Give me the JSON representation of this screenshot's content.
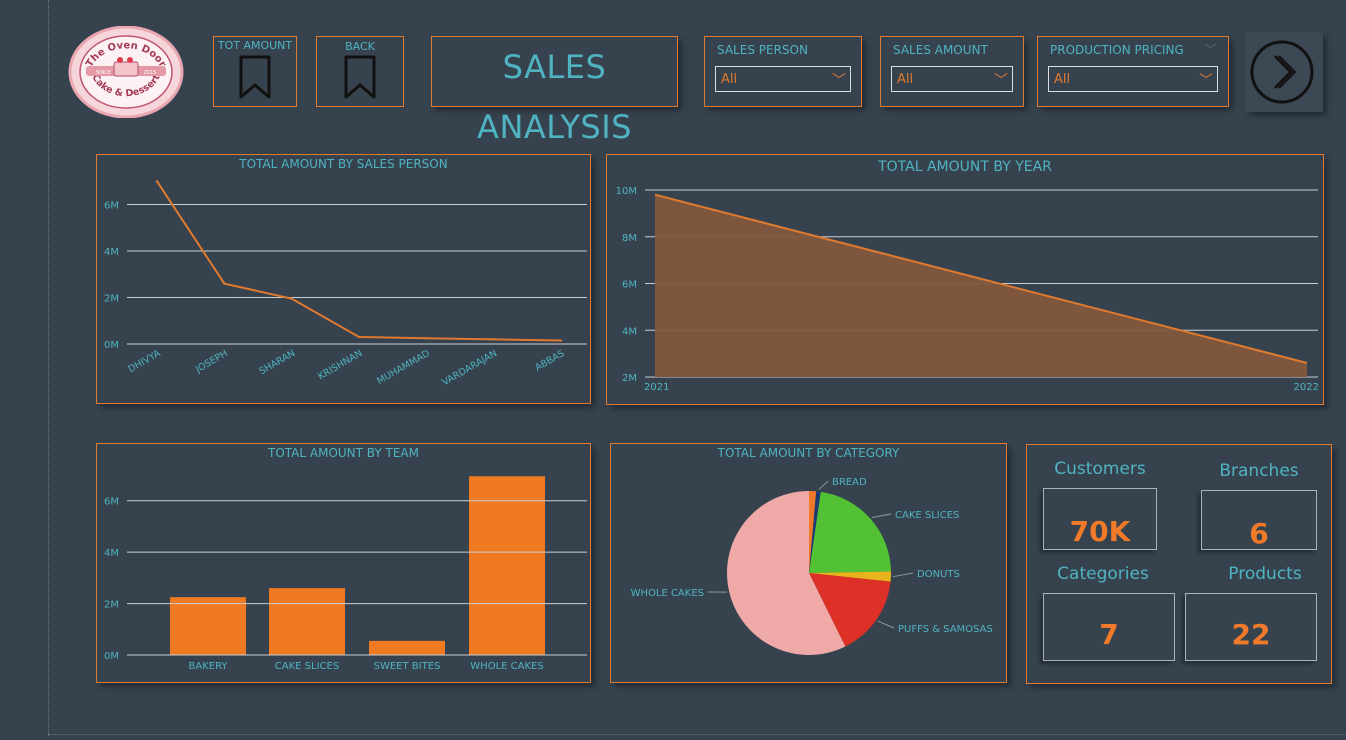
{
  "header": {
    "title": "SALES ANALYSIS",
    "logo": {
      "name": "The Oven Door",
      "tagline": "Cake & Dessert",
      "since_label": "SINCE",
      "year": "2015"
    },
    "tot_amount_label": "TOT AMOUNT",
    "back_label": "BACK",
    "slicers": [
      {
        "label": "SALES PERSON",
        "value": "All"
      },
      {
        "label": "SALES AMOUNT",
        "value": "All"
      },
      {
        "label": "PRODUCTION PRICING",
        "value": "All"
      }
    ]
  },
  "colors": {
    "background": "#36434f",
    "accent": "#e07a2e",
    "text": "#4fb3c1",
    "area_fill": "#83573d"
  },
  "chart_data": [
    {
      "id": "by_sales_person",
      "type": "line",
      "title": "TOTAL AMOUNT BY SALES PERSON",
      "categories": [
        "DHIVYA",
        "JOSEPH",
        "SHARAN",
        "KRISHNAN",
        "MUHAMMAD",
        "VARDARAJAN",
        "ABBAS"
      ],
      "values": [
        7.0,
        2.6,
        1.95,
        0.3,
        0.25,
        0.2,
        0.15
      ],
      "yticks": [
        "0M",
        "2M",
        "4M",
        "6M"
      ],
      "ylim": [
        0,
        7.4
      ],
      "grid": true
    },
    {
      "id": "by_year",
      "type": "area",
      "title": "TOTAL AMOUNT BY YEAR",
      "categories": [
        "2021",
        "2022"
      ],
      "values": [
        9.8,
        2.6
      ],
      "yticks": [
        "2M",
        "4M",
        "6M",
        "8M",
        "10M"
      ],
      "ylim": [
        2,
        10
      ],
      "grid": true
    },
    {
      "id": "by_team",
      "type": "bar",
      "title": "TOTAL AMOUNT BY TEAM",
      "categories": [
        "BAKERY",
        "CAKE SLICES",
        "SWEET BITES",
        "WHOLE CAKES"
      ],
      "values": [
        2.25,
        2.6,
        0.55,
        6.95
      ],
      "yticks": [
        "0M",
        "2M",
        "4M",
        "6M"
      ],
      "ylim": [
        0,
        7.0
      ],
      "grid": true
    },
    {
      "id": "by_category",
      "type": "pie",
      "title": "TOTAL AMOUNT BY CATEGORY",
      "slices": [
        {
          "label": "",
          "value": 1.4,
          "color": "#f07a2a"
        },
        {
          "label": "BREAD",
          "value": 0.9,
          "color": "#1f3a73"
        },
        {
          "label": "CAKE SLICES",
          "value": 22.4,
          "color": "#52c234"
        },
        {
          "label": "DONUTS",
          "value": 2.0,
          "color": "#e8b31c"
        },
        {
          "label": "PUFFS & SAMOSAS",
          "value": 16.0,
          "color": "#dd3026"
        },
        {
          "label": "WHOLE CAKES",
          "value": 57.3,
          "color": "#efaaa8"
        }
      ]
    }
  ],
  "kpis": [
    {
      "label": "Customers",
      "value": "70K"
    },
    {
      "label": "Branches",
      "value": "6"
    },
    {
      "label": "Categories",
      "value": "7"
    },
    {
      "label": "Products",
      "value": "22"
    }
  ]
}
